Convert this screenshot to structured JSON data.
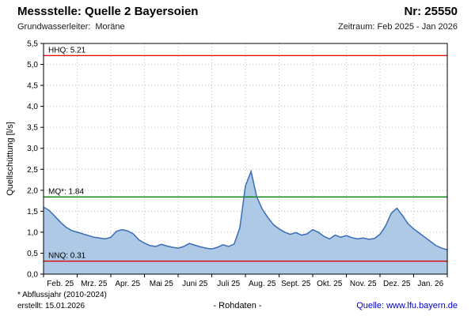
{
  "header": {
    "title": "Messstelle: Quelle 2 Bayersoien",
    "number": "Nr: 25550",
    "aquifer_label": "Grundwasserleiter:",
    "aquifer_value": "Moräne",
    "period": "Zeitraum: Feb 2025 - Jan 2026"
  },
  "footer": {
    "note": "* Abflussjahr (2010-2024)",
    "created": "erstellt:  15.01.2026",
    "center": "- Rohdaten -",
    "source_label": "Quelle:",
    "source_link": "www.lfu.bayern.de"
  },
  "chart_data": {
    "type": "area",
    "title": "",
    "ylabel": "Quellschüttung [l/s]",
    "ylim": [
      0,
      5.5
    ],
    "y_tick_step": 0.5,
    "y_tick_labels": [
      "0,0",
      "0,5",
      "1,0",
      "1,5",
      "2,0",
      "2,5",
      "3,0",
      "3,5",
      "4,0",
      "4,5",
      "5,0",
      "5,5"
    ],
    "x_labels": [
      "Feb. 25",
      "Mrz. 25",
      "Apr. 25",
      "Mai 25",
      "Juni 25",
      "Juli 25",
      "Aug. 25",
      "Sept. 25",
      "Okt. 25",
      "Nov. 25",
      "Dez. 25",
      "Jan. 26"
    ],
    "grid": true,
    "legend_position": "none",
    "colors": {
      "area_fill": "#adc9e6",
      "line": "#3a6db5",
      "grid": "#bdbdbd",
      "frame": "#000000"
    },
    "reference_lines": [
      {
        "name": "HHQ",
        "label": "HHQ: 5.21",
        "value": 5.21,
        "color": "#dd0000"
      },
      {
        "name": "MQ*",
        "label": "MQ*: 1.84",
        "value": 1.84,
        "color": "#008000"
      },
      {
        "name": "NNQ",
        "label": "NNQ: 0.31",
        "value": 0.31,
        "color": "#dd0000"
      }
    ],
    "series": [
      {
        "name": "Quellschüttung Rohdaten",
        "values": [
          1.6,
          1.52,
          1.38,
          1.24,
          1.12,
          1.04,
          1.0,
          0.96,
          0.92,
          0.88,
          0.86,
          0.84,
          0.88,
          1.02,
          1.06,
          1.03,
          0.96,
          0.82,
          0.74,
          0.68,
          0.66,
          0.71,
          0.67,
          0.64,
          0.62,
          0.66,
          0.73,
          0.69,
          0.65,
          0.62,
          0.6,
          0.64,
          0.7,
          0.66,
          0.72,
          1.1,
          2.1,
          2.45,
          1.85,
          1.55,
          1.35,
          1.18,
          1.08,
          1.0,
          0.95,
          0.99,
          0.93,
          0.96,
          1.06,
          1.0,
          0.9,
          0.84,
          0.93,
          0.88,
          0.92,
          0.87,
          0.84,
          0.86,
          0.83,
          0.85,
          0.95,
          1.15,
          1.45,
          1.57,
          1.4,
          1.2,
          1.08,
          0.98,
          0.88,
          0.78,
          0.68,
          0.62,
          0.58
        ]
      }
    ]
  }
}
